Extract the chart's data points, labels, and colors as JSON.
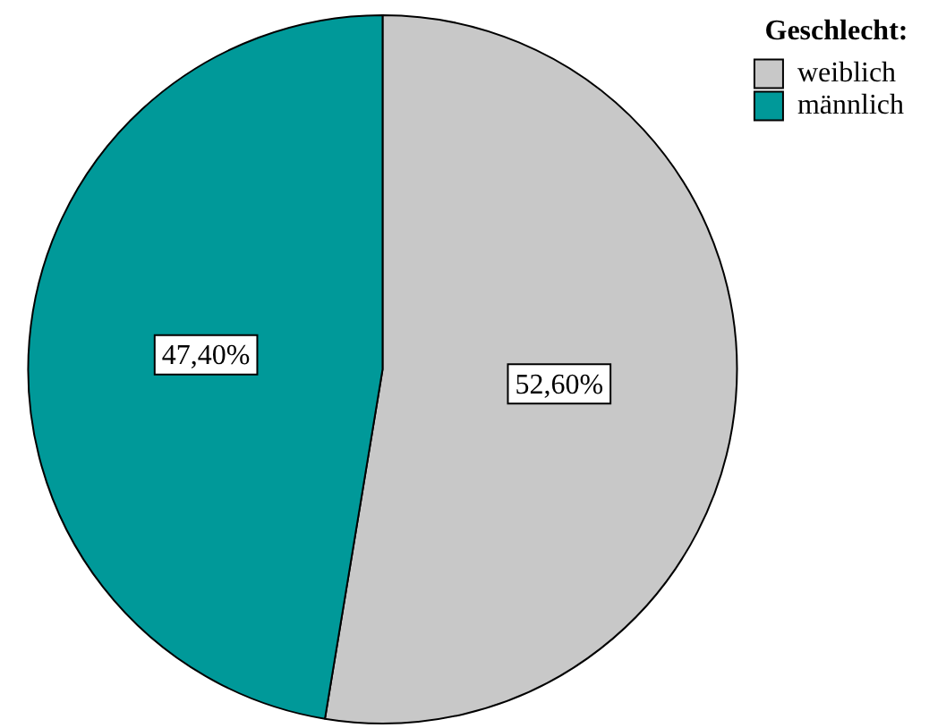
{
  "chart_data": {
    "type": "pie",
    "legend_title": "Geschlecht:",
    "legend": "top right",
    "categories": [
      "weiblich",
      "männlich"
    ],
    "values": [
      52.6,
      47.4
    ],
    "colors": [
      "#c8c8c8",
      "#009999"
    ],
    "value_labels": [
      "52,60%",
      "47,40%"
    ]
  }
}
